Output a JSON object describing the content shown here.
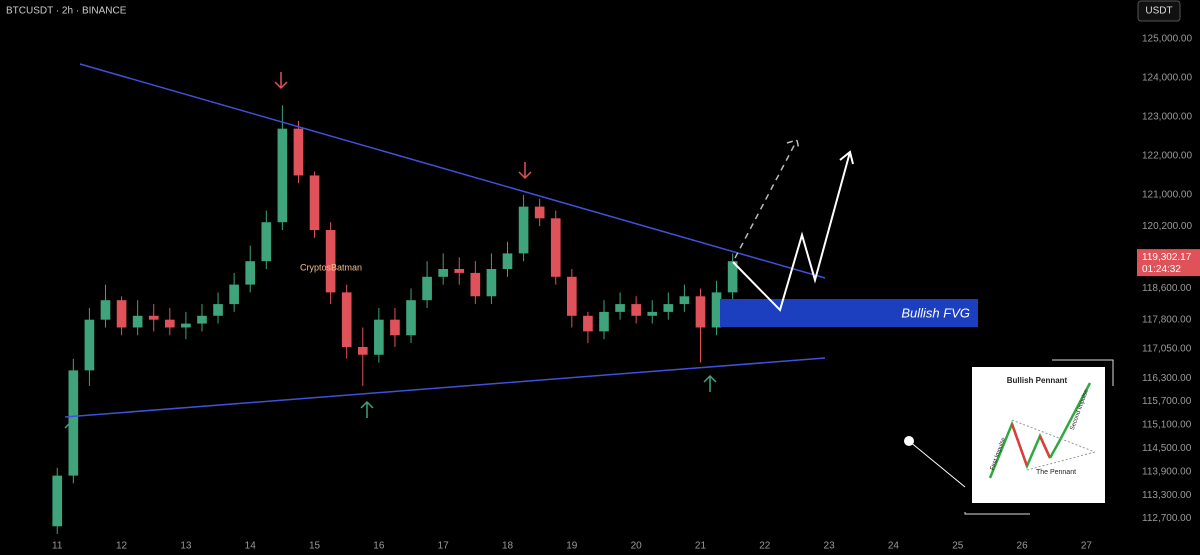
{
  "header": {
    "symbol": "BTCUSDT · 2h · BINANCE",
    "currency": "USDT"
  },
  "chart_data": {
    "type": "candlestick",
    "x": [
      11,
      11.25,
      11.5,
      11.75,
      12,
      12.25,
      12.5,
      12.75,
      13,
      13.25,
      13.5,
      13.75,
      14,
      14.25,
      14.5,
      14.75,
      15,
      15.25,
      15.5,
      15.75,
      16,
      16.25,
      16.5,
      16.75,
      17,
      17.25,
      17.5,
      17.75,
      18,
      18.25,
      18.5,
      18.75,
      19,
      19.25,
      19.5,
      19.75,
      20,
      20.25,
      20.5,
      20.75,
      21,
      21.25,
      21.5
    ],
    "open": [
      112500,
      113800,
      116500,
      117800,
      118300,
      117600,
      117900,
      117800,
      117600,
      117700,
      117900,
      118200,
      118700,
      119300,
      120300,
      122700,
      121500,
      120100,
      118500,
      117100,
      116900,
      117800,
      117400,
      118300,
      118900,
      119100,
      119000,
      118400,
      119100,
      119500,
      120700,
      120400,
      118900,
      117900,
      117500,
      118000,
      118200,
      117900,
      118000,
      118200,
      118400,
      117600,
      118500
    ],
    "high": [
      114000,
      116800,
      118100,
      118700,
      118400,
      118300,
      118200,
      118100,
      118000,
      118200,
      118500,
      119000,
      119700,
      120600,
      123300,
      122900,
      121600,
      120300,
      118700,
      117600,
      118100,
      118100,
      118600,
      119300,
      119500,
      119400,
      119300,
      119500,
      119800,
      121000,
      120900,
      120600,
      119100,
      118000,
      118300,
      118500,
      118400,
      118300,
      118500,
      118700,
      118600,
      118800,
      119500
    ],
    "low": [
      112300,
      113600,
      116100,
      117600,
      117400,
      117400,
      117500,
      117400,
      117300,
      117500,
      117700,
      118000,
      118500,
      119100,
      120100,
      121300,
      119900,
      118200,
      116800,
      116100,
      116700,
      117100,
      117200,
      118100,
      118700,
      118700,
      118200,
      118200,
      118900,
      119300,
      120200,
      118700,
      117600,
      117200,
      117300,
      117800,
      117700,
      117700,
      117800,
      118000,
      116700,
      117400,
      118300
    ],
    "close": [
      113800,
      116500,
      117800,
      118300,
      117600,
      117900,
      117800,
      117600,
      117700,
      117900,
      118200,
      118700,
      119300,
      120300,
      122700,
      121500,
      120100,
      118500,
      117100,
      116900,
      117800,
      117400,
      118300,
      118900,
      119100,
      119000,
      118400,
      119100,
      119500,
      120700,
      120400,
      118900,
      117900,
      117500,
      118000,
      118200,
      117900,
      118000,
      118200,
      118400,
      117600,
      118500,
      119300
    ],
    "up_color": "#3fa37c",
    "down_color": "#e0525a",
    "xlim": [
      10.11,
      27.6
    ],
    "xticks": [
      11,
      12,
      13,
      14,
      15,
      16,
      17,
      18,
      19,
      20,
      21,
      22,
      23,
      24,
      25,
      26,
      27
    ],
    "ylim": [
      112200,
      126000
    ],
    "yticks": [
      {
        "value": 125000,
        "label": "125,000.00"
      },
      {
        "value": 124000,
        "label": "124,000.00"
      },
      {
        "value": 123000,
        "label": "123,000.00"
      },
      {
        "value": 122000,
        "label": "122,000.00"
      },
      {
        "value": 121000,
        "label": "121,000.00"
      },
      {
        "value": 120200,
        "label": "120,200.00"
      },
      {
        "value": 118600,
        "label": "118,600.00"
      },
      {
        "value": 117800,
        "label": "117,800.00"
      },
      {
        "value": 117050,
        "label": "117,050.00"
      },
      {
        "value": 116300,
        "label": "116,300.00"
      },
      {
        "value": 115700,
        "label": "115,700.00"
      },
      {
        "value": 115100,
        "label": "115,100.00"
      },
      {
        "value": 114500,
        "label": "114,500.00"
      },
      {
        "value": 113900,
        "label": "113,900.00"
      },
      {
        "value": 113300,
        "label": "113,300.00"
      },
      {
        "value": 112700,
        "label": "112,700.00"
      }
    ],
    "current_price": {
      "value": 119302.17,
      "label": "119,302.17"
    },
    "countdown": "01:24:32",
    "fvg_label": "Bullish FVG",
    "watermark": "CryptosBatman"
  },
  "inset": {
    "title": "Bullish Pennant",
    "pennant": "The Pennant",
    "first": "First Impulse",
    "second": "Second Impulse"
  }
}
